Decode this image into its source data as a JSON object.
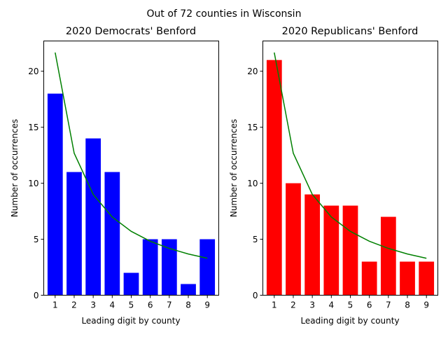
{
  "figure": {
    "suptitle": "Out of 72 counties in Wisconsin"
  },
  "chart_data": [
    {
      "type": "bar",
      "title": "2020 Democrats' Benford",
      "xlabel": "Leading digit by county",
      "ylabel": "Number of occurrences",
      "categories": [
        "1",
        "2",
        "3",
        "4",
        "5",
        "6",
        "7",
        "8",
        "9"
      ],
      "series": [
        {
          "values": [
            18,
            11,
            14,
            11,
            2,
            5,
            5,
            1,
            5
          ],
          "color": "#0000ff"
        }
      ],
      "benford_line": {
        "values": [
          21.67,
          12.68,
          9.0,
          6.98,
          5.7,
          4.82,
          4.18,
          3.68,
          3.3
        ],
        "color": "#008000"
      },
      "ylim": [
        0,
        22.7
      ],
      "yticks": [
        0,
        5,
        10,
        15,
        20
      ],
      "grid": false
    },
    {
      "type": "bar",
      "title": "2020 Republicans' Benford",
      "xlabel": "Leading digit by county",
      "ylabel": "Number of occurrences",
      "categories": [
        "1",
        "2",
        "3",
        "4",
        "5",
        "6",
        "7",
        "8",
        "9"
      ],
      "series": [
        {
          "values": [
            21,
            10,
            9,
            8,
            8,
            3,
            7,
            3,
            3
          ],
          "color": "#ff0000"
        }
      ],
      "benford_line": {
        "values": [
          21.67,
          12.68,
          9.0,
          6.98,
          5.7,
          4.82,
          4.18,
          3.68,
          3.3
        ],
        "color": "#008000"
      },
      "ylim": [
        0,
        22.7
      ],
      "yticks": [
        0,
        5,
        10,
        15,
        20
      ],
      "grid": false
    }
  ]
}
